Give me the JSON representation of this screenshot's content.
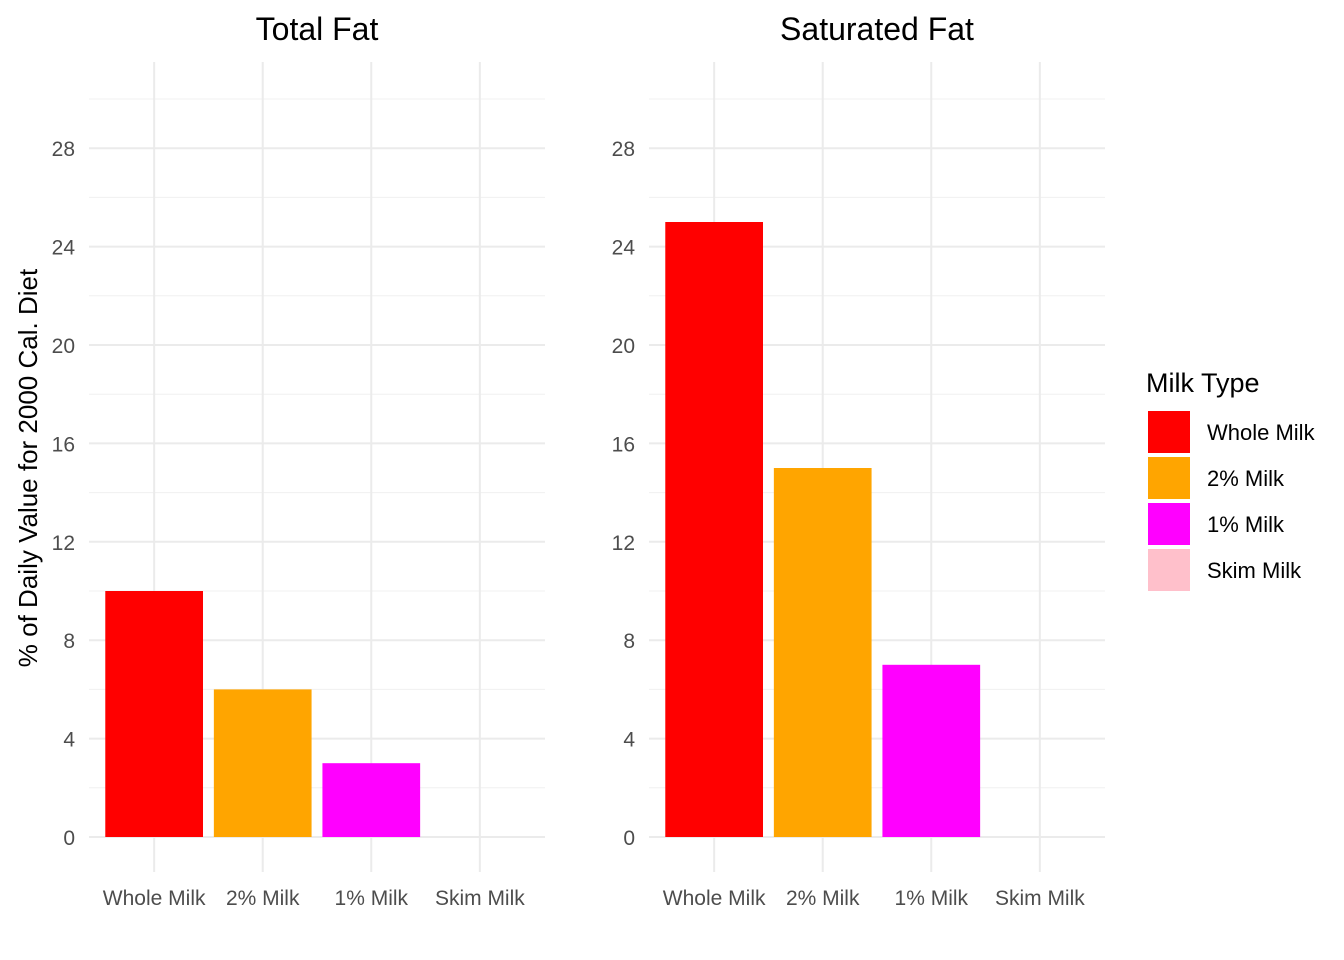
{
  "chart_data": {
    "type": "bar",
    "ylabel": "% of Daily Value for 2000 Cal. Diet",
    "ylim": [
      0,
      31.5
    ],
    "yticks": [
      0,
      4,
      8,
      12,
      16,
      20,
      24,
      28
    ],
    "grid": true,
    "legend_position": "right",
    "categories": [
      "Whole Milk",
      "2% Milk",
      "1% Milk",
      "Skim Milk"
    ],
    "colors": [
      "#ff0000",
      "#ffa500",
      "#ff00ff",
      "#ffc0cb"
    ],
    "panels": [
      {
        "title": "Total Fat",
        "values": [
          10,
          6,
          3,
          0
        ]
      },
      {
        "title": "Saturated Fat",
        "values": [
          25,
          15,
          7,
          0
        ]
      }
    ],
    "legend": {
      "title": "Milk Type",
      "items": [
        "Whole Milk",
        "2% Milk",
        "1% Milk",
        "Skim Milk"
      ]
    }
  }
}
